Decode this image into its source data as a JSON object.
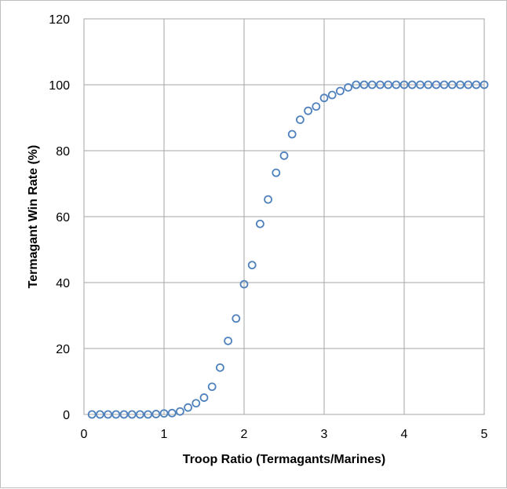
{
  "chart_data": {
    "type": "scatter",
    "title": "",
    "xlabel": "Troop Ratio (Termagants/Marines)",
    "ylabel": "Termagant Win Rate (%)",
    "xlim": [
      0,
      5
    ],
    "ylim": [
      0,
      120
    ],
    "x_ticks": [
      "0",
      "1",
      "2",
      "3",
      "4",
      "5"
    ],
    "y_ticks": [
      "0",
      "20",
      "40",
      "60",
      "80",
      "100",
      "120"
    ],
    "grid": true,
    "legend": "none",
    "marker": "open-circle",
    "colors": {
      "marker": "#4f81bd",
      "grid": "#a6a6a6",
      "frame": "#bfbfbf"
    },
    "series": [
      {
        "x": [
          0.1,
          0.2,
          0.3,
          0.4,
          0.5,
          0.6,
          0.7,
          0.8,
          0.9,
          1.0,
          1.1,
          1.2,
          1.3,
          1.4,
          1.5,
          1.6,
          1.7,
          1.8,
          1.9,
          2.0,
          2.1,
          2.2,
          2.3,
          2.4,
          2.5,
          2.6,
          2.7,
          2.8,
          2.9,
          3.0,
          3.1,
          3.2,
          3.3,
          3.4,
          3.5,
          3.6,
          3.7,
          3.8,
          3.9,
          4.0,
          4.1,
          4.2,
          4.3,
          4.4,
          4.5,
          4.6,
          4.7,
          4.8,
          4.9,
          5.0
        ],
        "y": [
          0,
          0,
          0,
          0,
          0,
          0,
          0,
          0,
          0.1,
          0.3,
          0.4,
          0.9,
          2.1,
          3.4,
          5.1,
          8.4,
          14.2,
          22.3,
          29.1,
          39.5,
          45.3,
          57.8,
          65.2,
          73.3,
          78.5,
          85,
          89.4,
          92.1,
          93.4,
          96,
          96.9,
          98.1,
          99.2,
          100,
          100,
          100,
          100,
          100,
          100,
          100,
          100,
          100,
          100,
          100,
          100,
          100,
          100,
          100,
          100,
          100
        ]
      }
    ]
  }
}
